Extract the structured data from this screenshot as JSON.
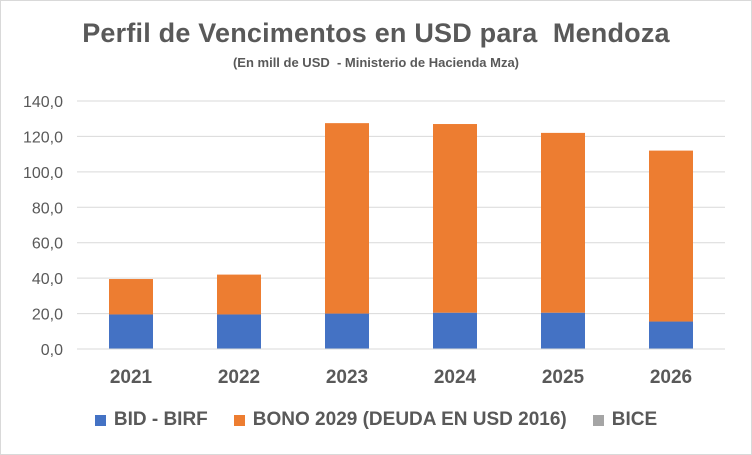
{
  "chart_data": {
    "type": "bar",
    "stacked": true,
    "title": "Perfil de Vencimentos en USD para  Mendoza",
    "subtitle": "(En mill de USD  - Ministerio de Hacienda Mza)",
    "categories": [
      "2021",
      "2022",
      "2023",
      "2024",
      "2025",
      "2026"
    ],
    "series": [
      {
        "name": "BID - BIRF",
        "color": "#4472c4",
        "values": [
          19.5,
          19.5,
          20.0,
          20.5,
          20.5,
          15.5
        ]
      },
      {
        "name": "BONO 2029 (DEUDA EN USD 2016)",
        "color": "#ed7d31",
        "values": [
          20.0,
          22.5,
          107.5,
          106.5,
          101.5,
          96.5
        ]
      },
      {
        "name": "BICE",
        "color": "#a5a5a5",
        "values": [
          0,
          0,
          0,
          0,
          0,
          0
        ]
      }
    ],
    "yticks": [
      "0,0",
      "20,0",
      "40,0",
      "60,0",
      "80,0",
      "100,0",
      "120,0",
      "140,0"
    ],
    "ylim": [
      0,
      140
    ],
    "grid": true,
    "legend_position": "bottom"
  }
}
